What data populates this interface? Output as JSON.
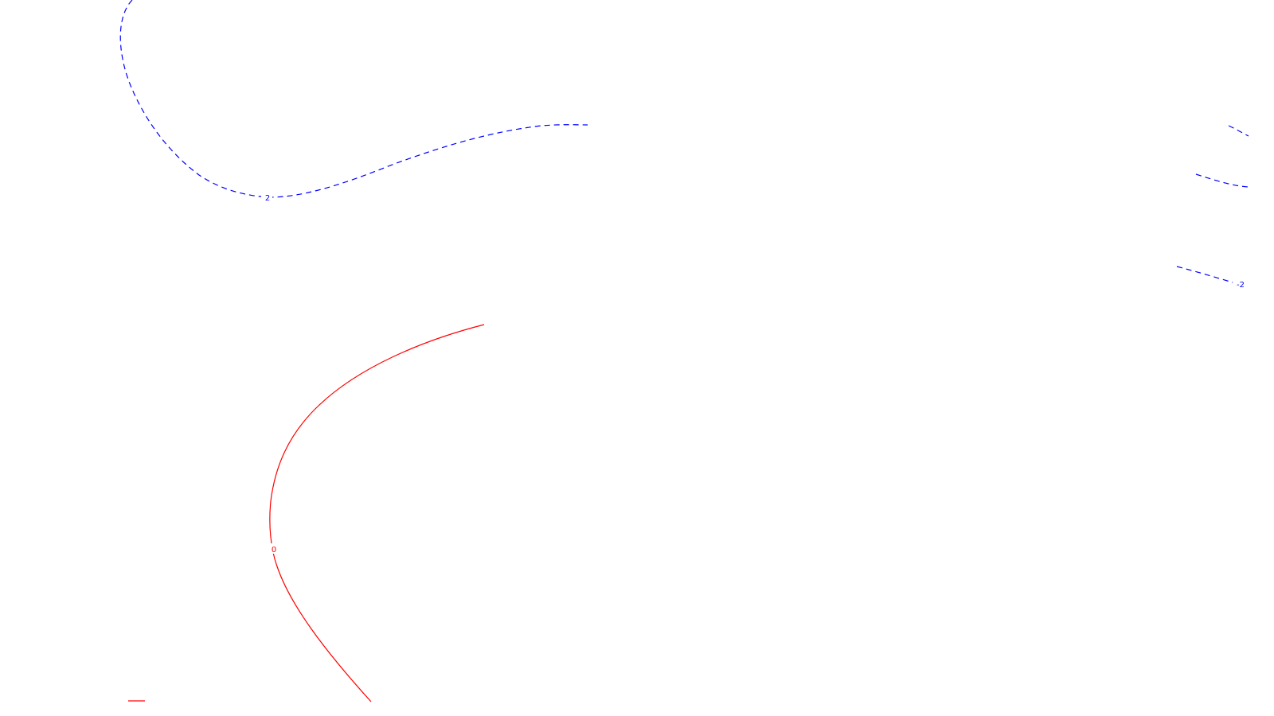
{
  "chart_data": {
    "type": "contour",
    "title": "",
    "xlabel": "",
    "ylabel": "",
    "grid": false,
    "legend": "none",
    "levels": [
      {
        "name": "",
        "value": -2,
        "label": "-2",
        "color": "#0000ff",
        "style": "dashed"
      },
      {
        "name": "",
        "value": 0,
        "label": "0",
        "color": "#ff0000",
        "style": "solid"
      }
    ]
  }
}
